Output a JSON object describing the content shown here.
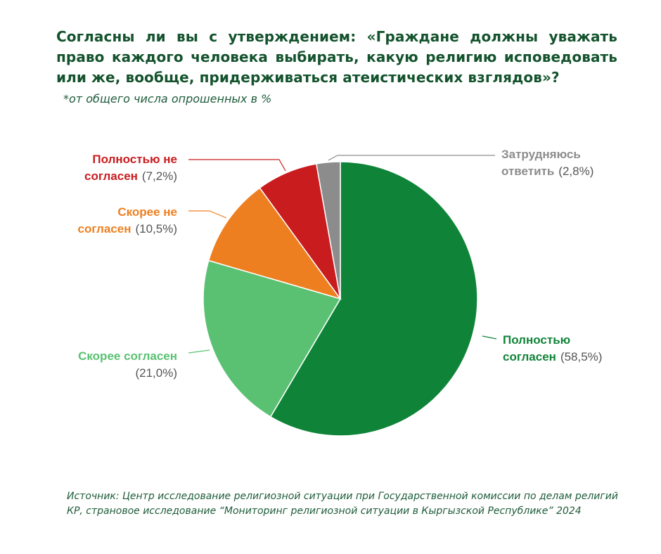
{
  "title": "Согласны ли вы с утверждением: «Граждане должны уважать право каждого человека выбирать, какую религию исповедовать или же, вообще, придерживаться атеистических взглядов»?",
  "subtitle": "*от общего числа опрошенных в %",
  "source": "Источник: Центр исследование религиозной ситуации при Государственной комиссии по делам религий КР, страновое исследование “Мониторинг религиозной ситуации в Кыргызской Республике” 2024",
  "chart_data": {
    "type": "pie",
    "slices": [
      {
        "line1": "Полностью",
        "line2": "согласен",
        "pct_text": "(58,5%)",
        "value": 58.5,
        "color": "#0f8438"
      },
      {
        "line1": "Скорее согласен",
        "line2": "",
        "pct_text": "(21,0%)",
        "value": 21.0,
        "color": "#5ac172"
      },
      {
        "line1": "Скорее не",
        "line2": "согласен",
        "pct_text": "(10,5%)",
        "value": 10.5,
        "color": "#ee7f20"
      },
      {
        "line1": "Полностью не",
        "line2": "согласен",
        "pct_text": "(7,2%)",
        "value": 7.2,
        "color": "#c91c1f"
      },
      {
        "line1": "Затрудняюсь",
        "line2": "ответить",
        "pct_text": "(2,8%)",
        "value": 2.8,
        "color": "#8c8c8c"
      }
    ]
  }
}
